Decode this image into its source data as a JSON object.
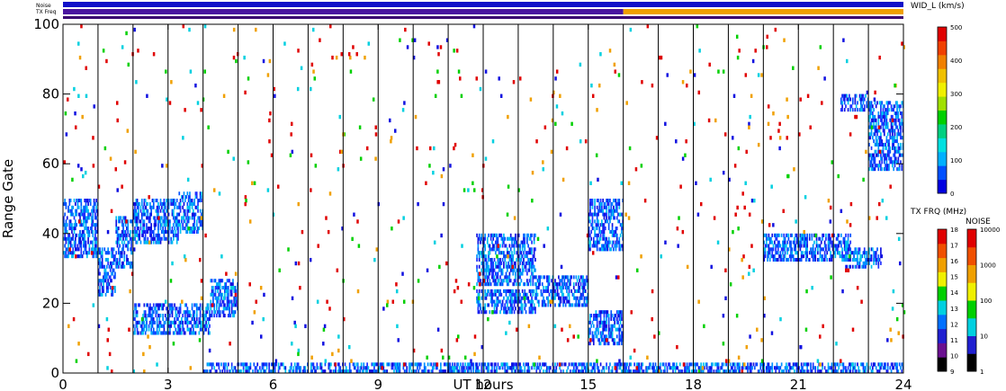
{
  "chart_data": {
    "type": "heatmap",
    "xlabel": "UT hours",
    "ylabel": "Range Gate",
    "xlim": [
      0,
      24
    ],
    "ylim": [
      0,
      100
    ],
    "x_ticks": [
      "0",
      "3",
      "6",
      "9",
      "12",
      "15",
      "18",
      "21",
      "24"
    ],
    "y_ticks": [
      "0",
      "20",
      "40",
      "60",
      "80",
      "100"
    ],
    "hour_lines": [
      1,
      2,
      3,
      4,
      5,
      6,
      7,
      8,
      9,
      10,
      11,
      12,
      13,
      14,
      15,
      16,
      17,
      18,
      19,
      20,
      21,
      22,
      23
    ],
    "status_strips": {
      "noise_label": "Noise",
      "txfreq_label": "TX Freq",
      "noise_color": "#1010c8",
      "txfreq_segments": [
        {
          "start": 0,
          "end": 16,
          "color": "#4a14a0"
        },
        {
          "start": 16,
          "end": 24,
          "color": "#f0a000"
        }
      ]
    },
    "colorbars": {
      "width": {
        "title": "WID_L (km/s)",
        "range": [
          0,
          500
        ],
        "ticks": [
          "0",
          "100",
          "200",
          "300",
          "400",
          "500"
        ],
        "colors": [
          "#0000e0",
          "#0050ff",
          "#00b0ff",
          "#00e0e0",
          "#00d080",
          "#00d000",
          "#a0e000",
          "#f0f000",
          "#f0c000",
          "#f08000",
          "#f04000",
          "#e00000"
        ]
      },
      "txfreq": {
        "title": "TX FRQ (MHz)",
        "ticks": [
          "9",
          "10",
          "11",
          "12",
          "13",
          "14",
          "15",
          "16",
          "17",
          "18"
        ],
        "colors": [
          "#000000",
          "#6a1090",
          "#2020d0",
          "#0070ff",
          "#00d0e0",
          "#00d000",
          "#f0f000",
          "#f0a000",
          "#f05000",
          "#e00000"
        ]
      },
      "noise": {
        "title": "NOISE",
        "ticks": [
          "1",
          "10",
          "100",
          "1000",
          "10000"
        ],
        "colors": [
          "#000000",
          "#2020d0",
          "#00d0e0",
          "#00d000",
          "#f0f000",
          "#f0a000",
          "#f05000",
          "#e00000"
        ]
      }
    },
    "series": [
      {
        "hours": [
          0,
          1
        ],
        "gates": [
          33,
          50
        ]
      },
      {
        "hours": [
          1,
          1.5
        ],
        "gates": [
          22,
          36
        ]
      },
      {
        "hours": [
          1.5,
          2
        ],
        "gates": [
          30,
          45
        ]
      },
      {
        "hours": [
          2,
          3.3
        ],
        "gates": [
          37,
          50
        ]
      },
      {
        "hours": [
          3.3,
          4
        ],
        "gates": [
          40,
          52
        ]
      },
      {
        "hours": [
          2,
          4.2
        ],
        "gates": [
          11,
          20
        ]
      },
      {
        "hours": [
          4.2,
          5
        ],
        "gates": [
          16,
          27
        ]
      },
      {
        "hours": [
          11.8,
          13.5
        ],
        "gates": [
          25,
          40
        ]
      },
      {
        "hours": [
          11.8,
          13.5
        ],
        "gates": [
          17,
          24
        ]
      },
      {
        "hours": [
          13.5,
          15
        ],
        "gates": [
          19,
          28
        ]
      },
      {
        "hours": [
          15,
          16
        ],
        "gates": [
          8,
          18
        ]
      },
      {
        "hours": [
          15,
          16
        ],
        "gates": [
          35,
          50
        ]
      },
      {
        "hours": [
          22.3,
          23.4
        ],
        "gates": [
          30,
          36
        ]
      },
      {
        "hours": [
          22.2,
          23
        ],
        "gates": [
          75,
          80
        ]
      },
      {
        "hours": [
          23,
          24
        ],
        "gates": [
          58,
          78
        ]
      },
      {
        "hours": [
          4,
          24
        ],
        "gates": [
          0,
          3
        ]
      },
      {
        "hours": [
          20,
          22.5
        ],
        "gates": [
          32,
          40
        ]
      }
    ]
  }
}
